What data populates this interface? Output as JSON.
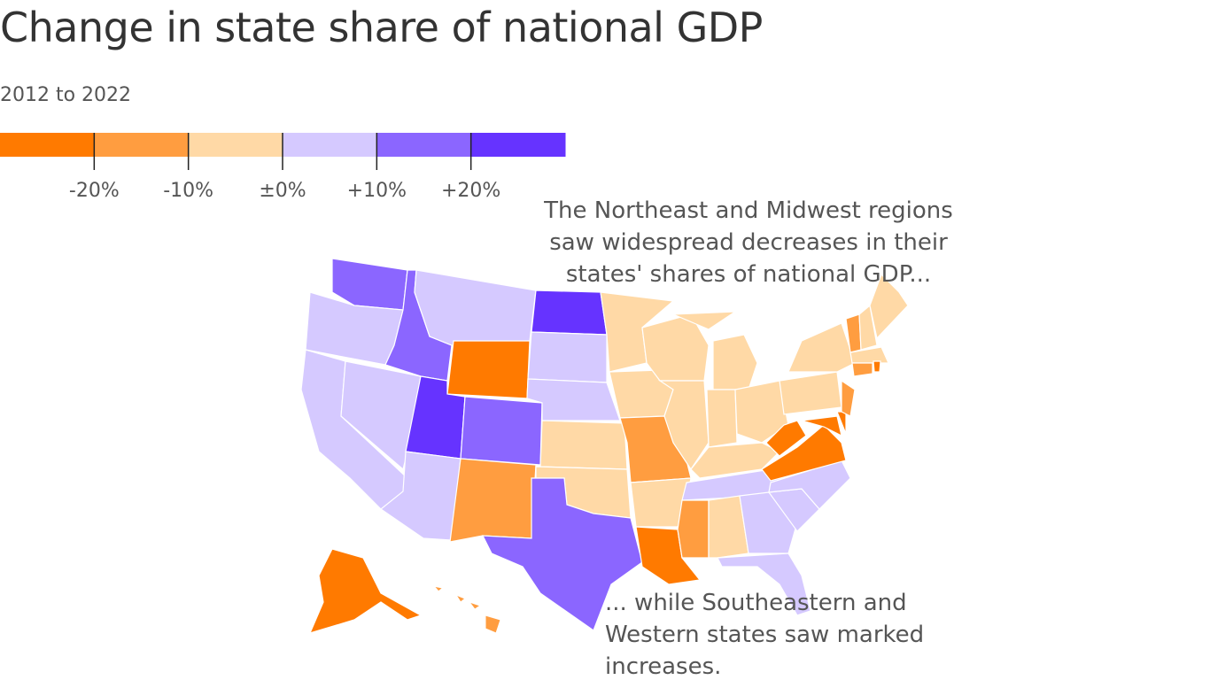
{
  "chart_data": {
    "type": "choropleth",
    "title": "Change in state share of national GDP",
    "subtitle": "2012 to 2022",
    "legend": {
      "xlim": [
        -30,
        30
      ],
      "colors": [
        "#ff7a00",
        "#ff9d40",
        "#ffd9a6",
        "#d5c9ff",
        "#8b66ff",
        "#6633ff"
      ],
      "xticks": [
        {
          "value": -20,
          "label": "-20%"
        },
        {
          "value": -10,
          "label": "-10%"
        },
        {
          "value": 0,
          "label": "±0%"
        },
        {
          "value": 10,
          "label": "+10%"
        },
        {
          "value": 20,
          "label": "+20%"
        }
      ]
    },
    "state_colors": [
      "#8b66ff",
      "#d5c9ff",
      "#d5c9ff",
      "#d5c9ff",
      "#8b66ff",
      "#d5c9ff",
      "#ff7a00",
      "#6633ff",
      "#d5c9ff",
      "#8b66ff",
      "#ff9d40",
      "#6633ff",
      "#d5c9ff",
      "#d5c9ff",
      "#ffd9a6",
      "#ffd9a6",
      "#8b66ff",
      "#ffd9a6",
      "#ffd9a6",
      "#ff9d40",
      "#ffd9a6",
      "#ff7a00",
      "#ffd9a6",
      "#ffd9a6",
      "#ffd9a6",
      "#ffd9a6",
      "#ffd9a6",
      "#ffd9a6",
      "#ffd9a6",
      "#d5c9ff",
      "#ff9d40",
      "#ffd9a6",
      "#d5c9ff",
      "#d5c9ff",
      "#d5c9ff",
      "#d5c9ff",
      "#ff7a00",
      "#ff7a00",
      "#ffd9a6",
      "#ffd9a6",
      "#ff7a00",
      "#ff7a00",
      "#ff9d40",
      "#ff9d40",
      "#ffd9a6",
      "#ffd9a6",
      "#ffd9a6",
      "#ff9d40",
      "#ff7a00",
      "#ff7a00",
      "#ff9d40"
    ],
    "annotations": [
      "The Northeast and Midwest regions saw widespread decreases in their states' shares of national GDP...",
      "... while Southeastern and Western states saw marked increases."
    ]
  }
}
